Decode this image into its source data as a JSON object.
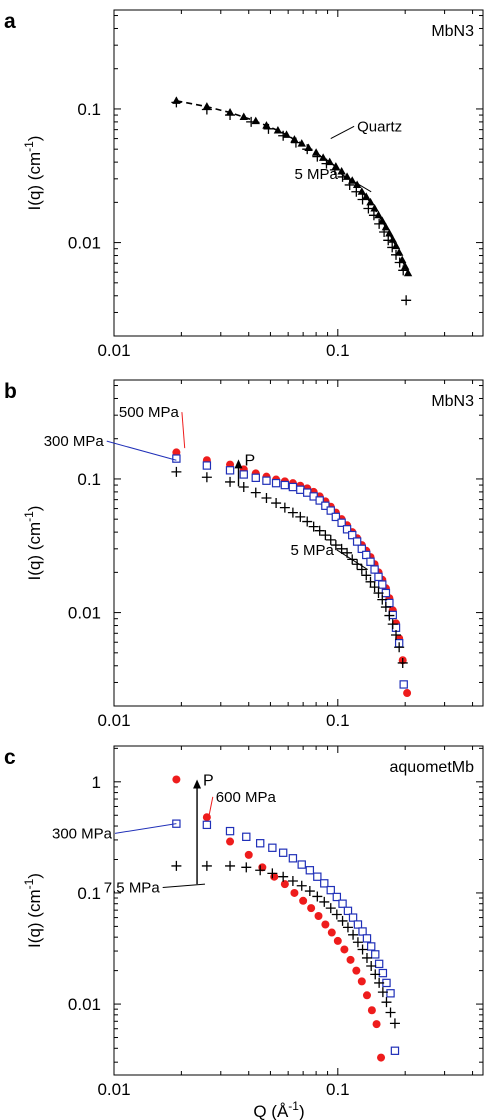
{
  "chart_data": [
    {
      "panel_label": "a",
      "type": "scatter",
      "log_x": true,
      "log_y": true,
      "xlim": [
        0.01,
        0.45
      ],
      "ylim": [
        0.002,
        0.55
      ],
      "x_ticks": [
        {
          "v": 0.01,
          "label": "0.01"
        },
        {
          "v": 0.1,
          "label": "0.1"
        }
      ],
      "y_ticks": [
        {
          "v": 0.01,
          "label": "0.01"
        },
        {
          "v": 0.1,
          "label": "0.1"
        }
      ],
      "ylabel": "I(q) (cm-1)",
      "xlabel": "",
      "tag": "MbN3",
      "series": [
        {
          "marker": "triangle",
          "color": "#000000",
          "line": "dashed",
          "x": [
            0.019,
            0.026,
            0.033,
            0.038,
            0.043,
            0.048,
            0.054,
            0.059,
            0.064,
            0.069,
            0.074,
            0.08,
            0.086,
            0.092,
            0.098,
            0.104,
            0.11,
            0.116,
            0.122,
            0.128,
            0.134,
            0.14,
            0.146,
            0.152,
            0.158,
            0.164,
            0.17,
            0.176,
            0.182,
            0.188,
            0.194,
            0.2,
            0.206
          ],
          "y": [
            0.115,
            0.104,
            0.094,
            0.087,
            0.081,
            0.075,
            0.069,
            0.064,
            0.059,
            0.055,
            0.051,
            0.047,
            0.043,
            0.04,
            0.037,
            0.034,
            0.031,
            0.029,
            0.027,
            0.024,
            0.022,
            0.02,
            0.018,
            0.016,
            0.0145,
            0.013,
            0.0117,
            0.0105,
            0.0094,
            0.0084,
            0.0074,
            0.0066,
            0.0059
          ]
        },
        {
          "marker": "plus",
          "color": "#000000",
          "x": [
            0.019,
            0.026,
            0.033,
            0.041,
            0.049,
            0.057,
            0.065,
            0.073,
            0.081,
            0.089,
            0.097,
            0.105,
            0.113,
            0.121,
            0.129,
            0.137,
            0.145,
            0.153,
            0.161,
            0.168,
            0.175,
            0.182,
            0.189,
            0.196,
            0.202
          ],
          "y": [
            0.112,
            0.099,
            0.09,
            0.08,
            0.071,
            0.063,
            0.056,
            0.05,
            0.044,
            0.039,
            0.035,
            0.031,
            0.027,
            0.024,
            0.021,
            0.018,
            0.016,
            0.0138,
            0.012,
            0.0104,
            0.0092,
            0.0081,
            0.0071,
            0.0062,
            0.0037
          ]
        }
      ],
      "annotations": [
        {
          "text": "Quartz",
          "ax": 0.093,
          "ay": 0.06,
          "tx": 0.122,
          "ty": 0.068
        },
        {
          "text": "5 MPa",
          "ax": 0.141,
          "ay": 0.024,
          "tx": 0.1,
          "ty": 0.03
        }
      ]
    },
    {
      "panel_label": "b",
      "type": "scatter",
      "log_x": true,
      "log_y": true,
      "xlim": [
        0.01,
        0.45
      ],
      "ylim": [
        0.002,
        0.55
      ],
      "x_ticks": [
        {
          "v": 0.01,
          "label": "0.01"
        },
        {
          "v": 0.1,
          "label": "0.1"
        }
      ],
      "y_ticks": [
        {
          "v": 0.01,
          "label": "0.01"
        },
        {
          "v": 0.1,
          "label": "0.1"
        }
      ],
      "ylabel": "I(q) (cm-1)",
      "xlabel": "",
      "tag": "MbN3",
      "series": [
        {
          "name": "500 MPa",
          "marker": "dot",
          "color": "#ee1c1c",
          "x": [
            0.019,
            0.026,
            0.033,
            0.038,
            0.043,
            0.048,
            0.053,
            0.058,
            0.063,
            0.068,
            0.073,
            0.078,
            0.083,
            0.088,
            0.093,
            0.098,
            0.104,
            0.11,
            0.116,
            0.122,
            0.128,
            0.134,
            0.14,
            0.146,
            0.152,
            0.158,
            0.164,
            0.17,
            0.176,
            0.182,
            0.188,
            0.195,
            0.204
          ],
          "y": [
            0.158,
            0.138,
            0.128,
            0.118,
            0.11,
            0.104,
            0.099,
            0.096,
            0.093,
            0.089,
            0.085,
            0.08,
            0.074,
            0.068,
            0.062,
            0.056,
            0.05,
            0.045,
            0.04,
            0.036,
            0.032,
            0.029,
            0.026,
            0.023,
            0.02,
            0.0176,
            0.0152,
            0.0128,
            0.0104,
            0.0083,
            0.0064,
            0.0044,
            0.0025
          ]
        },
        {
          "name": "300 MPa",
          "marker": "square",
          "color": "#2030b8",
          "x": [
            0.019,
            0.026,
            0.033,
            0.038,
            0.043,
            0.048,
            0.053,
            0.058,
            0.063,
            0.068,
            0.073,
            0.078,
            0.083,
            0.088,
            0.093,
            0.098,
            0.104,
            0.11,
            0.116,
            0.122,
            0.128,
            0.134,
            0.14,
            0.146,
            0.152,
            0.158,
            0.164,
            0.17,
            0.176,
            0.182,
            0.188,
            0.197
          ],
          "y": [
            0.142,
            0.126,
            0.116,
            0.108,
            0.102,
            0.097,
            0.093,
            0.09,
            0.087,
            0.083,
            0.079,
            0.074,
            0.069,
            0.063,
            0.058,
            0.052,
            0.047,
            0.042,
            0.038,
            0.034,
            0.03,
            0.027,
            0.024,
            0.021,
            0.0185,
            0.0162,
            0.014,
            0.0118,
            0.0096,
            0.0077,
            0.0059,
            0.0029
          ]
        },
        {
          "name": "5 MPa",
          "marker": "plus",
          "color": "#000000",
          "x": [
            0.019,
            0.026,
            0.033,
            0.038,
            0.043,
            0.048,
            0.053,
            0.058,
            0.063,
            0.068,
            0.073,
            0.078,
            0.083,
            0.088,
            0.093,
            0.098,
            0.104,
            0.11,
            0.116,
            0.122,
            0.128,
            0.134,
            0.14,
            0.146,
            0.152,
            0.158,
            0.164,
            0.17,
            0.176,
            0.182,
            0.188,
            0.195
          ],
          "y": [
            0.113,
            0.103,
            0.095,
            0.087,
            0.079,
            0.072,
            0.066,
            0.061,
            0.056,
            0.052,
            0.048,
            0.044,
            0.041,
            0.038,
            0.035,
            0.032,
            0.03,
            0.028,
            0.025,
            0.023,
            0.021,
            0.019,
            0.017,
            0.0155,
            0.014,
            0.0125,
            0.011,
            0.0095,
            0.0082,
            0.0068,
            0.0055,
            0.0042
          ]
        }
      ],
      "annotations": [
        {
          "text": "500 MPa",
          "color": "#ee1c1c",
          "ax": 0.0207,
          "ay": 0.17,
          "tx": 0.0195,
          "ty": 0.29
        },
        {
          "text": "300 MPa",
          "color": "#2030b8",
          "ax": 0.019,
          "ay": 0.138,
          "tx": 0.009,
          "ty": 0.176
        },
        {
          "text": "5 MPa",
          "color": "#000000",
          "ax": 0.136,
          "ay": 0.021,
          "tx": 0.096,
          "ty": 0.027
        }
      ],
      "arrow": {
        "text": "P",
        "x": 0.036,
        "y0": 0.088,
        "y1": 0.14
      }
    },
    {
      "panel_label": "c",
      "type": "scatter",
      "log_x": true,
      "log_y": true,
      "xlim": [
        0.01,
        0.45
      ],
      "ylim": [
        0.0023,
        2.1
      ],
      "x_ticks": [
        {
          "v": 0.01,
          "label": "0.01"
        },
        {
          "v": 0.1,
          "label": "0.1"
        }
      ],
      "y_ticks": [
        {
          "v": 0.01,
          "label": "0.01"
        },
        {
          "v": 0.1,
          "label": "0.1"
        },
        {
          "v": 1,
          "label": "1"
        }
      ],
      "ylabel": "I(q) (cm-1)",
      "xlabel": "Q (Å-1)",
      "tag": "aquometMb",
      "series": [
        {
          "name": "600 MPa",
          "marker": "dot",
          "color": "#ee1c1c",
          "x": [
            0.019,
            0.026,
            0.033,
            0.04,
            0.046,
            0.052,
            0.058,
            0.064,
            0.07,
            0.076,
            0.082,
            0.088,
            0.094,
            0.1,
            0.107,
            0.114,
            0.121,
            0.128,
            0.135,
            0.142,
            0.149,
            0.156
          ],
          "y": [
            1.05,
            0.48,
            0.29,
            0.22,
            0.17,
            0.14,
            0.12,
            0.1,
            0.085,
            0.073,
            0.062,
            0.052,
            0.044,
            0.037,
            0.031,
            0.025,
            0.02,
            0.016,
            0.012,
            0.0088,
            0.0066,
            0.0033
          ]
        },
        {
          "name": "300 MPa",
          "marker": "square",
          "color": "#2030b8",
          "x": [
            0.019,
            0.026,
            0.033,
            0.039,
            0.045,
            0.051,
            0.057,
            0.063,
            0.069,
            0.075,
            0.081,
            0.087,
            0.093,
            0.099,
            0.105,
            0.111,
            0.117,
            0.123,
            0.129,
            0.135,
            0.141,
            0.147,
            0.153,
            0.159,
            0.165,
            0.172,
            0.18
          ],
          "y": [
            0.42,
            0.41,
            0.36,
            0.32,
            0.28,
            0.255,
            0.23,
            0.205,
            0.18,
            0.16,
            0.14,
            0.122,
            0.106,
            0.092,
            0.08,
            0.069,
            0.06,
            0.052,
            0.045,
            0.039,
            0.033,
            0.028,
            0.023,
            0.019,
            0.0155,
            0.0125,
            0.0038
          ]
        },
        {
          "name": "7.5 MPa",
          "marker": "plus",
          "color": "#000000",
          "x": [
            0.019,
            0.026,
            0.033,
            0.039,
            0.045,
            0.051,
            0.057,
            0.063,
            0.069,
            0.075,
            0.081,
            0.087,
            0.093,
            0.099,
            0.105,
            0.111,
            0.117,
            0.123,
            0.129,
            0.135,
            0.141,
            0.147,
            0.153,
            0.159,
            0.165,
            0.172,
            0.18
          ],
          "y": [
            0.175,
            0.175,
            0.175,
            0.17,
            0.16,
            0.15,
            0.14,
            0.128,
            0.116,
            0.104,
            0.093,
            0.083,
            0.073,
            0.064,
            0.056,
            0.049,
            0.042,
            0.036,
            0.031,
            0.026,
            0.022,
            0.0185,
            0.0155,
            0.0128,
            0.0104,
            0.0084,
            0.0067
          ]
        }
      ],
      "annotations": [
        {
          "text": "600 MPa",
          "color": "#ee1c1c",
          "ax": 0.0265,
          "ay": 0.48,
          "tx": 0.0285,
          "ty": 0.66
        },
        {
          "text": "300 MPa",
          "color": "#2030b8",
          "ax": 0.019,
          "ay": 0.42,
          "tx": 0.0098,
          "ty": 0.31
        },
        {
          "text": "7.5 MPa",
          "color": "#000000",
          "ax": 0.0255,
          "ay": 0.12,
          "tx": 0.016,
          "ty": 0.101
        }
      ],
      "arrow": {
        "text": "P",
        "x": 0.0235,
        "y0": 0.12,
        "y1": 1.05
      }
    }
  ]
}
